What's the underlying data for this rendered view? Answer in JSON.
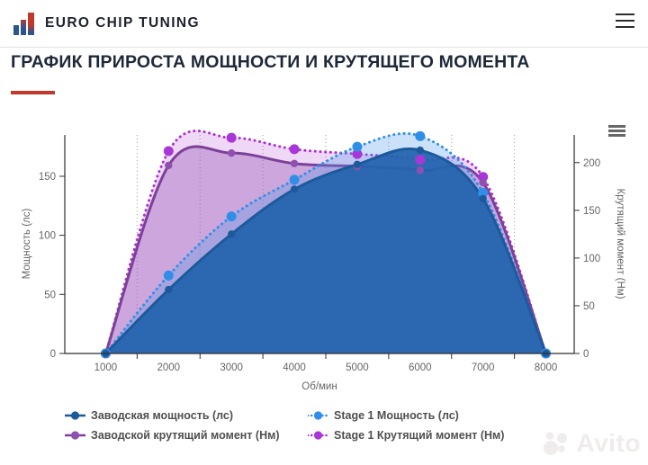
{
  "header": {
    "brand": "EURO CHIP TUNING"
  },
  "page": {
    "title": "ГРАФИК ПРИРОСТА МОЩНОСТИ И КРУТЯЩЕГО МОМЕНТА",
    "accent_color": "#c0392b"
  },
  "watermark": {
    "text": "Avito"
  },
  "chart_data": {
    "type": "line",
    "x": [
      1000,
      2000,
      3000,
      4000,
      5000,
      6000,
      7000,
      8000
    ],
    "xticks": [
      1000,
      2000,
      3000,
      4000,
      5000,
      6000,
      7000,
      8000
    ],
    "x_gridlines": [
      1500,
      2500,
      3500,
      4500,
      5500,
      6500,
      7500
    ],
    "xlim": [
      350,
      8450
    ],
    "xlabel": "Об/мин",
    "ylabel_left": "Мощность (лс)",
    "ylabel_right": "Крутящий момент (Нм)",
    "yticks_left": [
      0,
      50,
      100,
      150
    ],
    "yticks_right": [
      0,
      50,
      100,
      150,
      200
    ],
    "ylim_left": [
      0,
      185
    ],
    "ylim_right": [
      0,
      229
    ],
    "grid": "vertical-dotted",
    "legend_position": "bottom-left",
    "series": [
      {
        "key": "stage1_torque",
        "name": "Stage 1 Крутящий момент (Нм)",
        "axis": "right",
        "line": "dotted",
        "color": "#ac2fd6",
        "marker_color": "#a936d6",
        "marker_r": 5.5,
        "fill": "rgba(190,95,218,0.25)",
        "values": [
          0,
          212,
          226,
          214,
          209,
          203,
          185,
          0
        ]
      },
      {
        "key": "factory_torque",
        "name": "Заводской крутящий момент (Нм)",
        "axis": "right",
        "line": "solid",
        "color": "#7c4099",
        "marker_color": "#8e4fae",
        "marker_r": 4.2,
        "fill": "rgba(148,88,180,0.38)",
        "values": [
          0,
          197,
          210,
          199,
          196,
          192,
          179,
          0
        ]
      },
      {
        "key": "stage1_power",
        "name": "Stage 1 Мощность (лс)",
        "axis": "left",
        "line": "dotted",
        "color": "#2f8fe8",
        "marker_color": "#2f8fe8",
        "marker_r": 5.5,
        "fill": "rgba(80,156,236,0.30)",
        "values": [
          0,
          66,
          116,
          147,
          175,
          184,
          136,
          0
        ]
      },
      {
        "key": "factory_power",
        "name": "Заводская мощность (лс)",
        "axis": "left",
        "line": "solid",
        "color": "#1d5a9b",
        "marker_color": "#1d5a9b",
        "marker_r": 4.2,
        "fill": "rgba(34,99,173,0.93)",
        "values": [
          0,
          54,
          101,
          139,
          160,
          172,
          131,
          0
        ]
      }
    ],
    "legend_order": [
      3,
      2,
      1,
      0
    ]
  }
}
